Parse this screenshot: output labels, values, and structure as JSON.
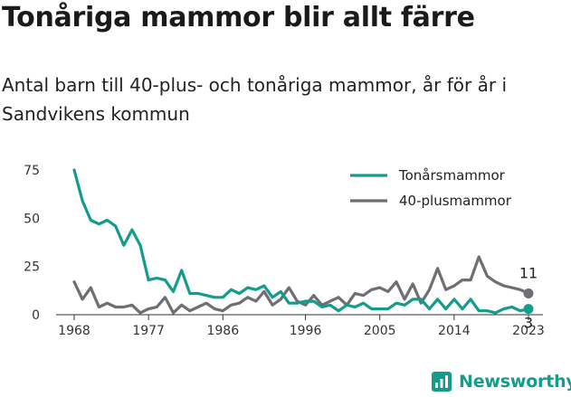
{
  "header": {
    "title": "Tonåriga mammor blir allt färre",
    "subtitle": "Antal barn till 40-plus- och tonåriga mammor, år för år i Sandvikens kommun"
  },
  "brand": {
    "name": "Newsworthy",
    "icon": "newsworthy-logo-icon",
    "color": "#139c8c"
  },
  "chart_data": {
    "type": "line",
    "title": "Tonåriga mammor blir allt färre",
    "subtitle": "Antal barn till 40-plus- och tonåriga mammor, år för år i Sandvikens kommun",
    "xlabel": "",
    "ylabel": "",
    "x": [
      1968,
      1969,
      1970,
      1971,
      1972,
      1973,
      1974,
      1975,
      1976,
      1977,
      1978,
      1979,
      1980,
      1981,
      1982,
      1983,
      1984,
      1985,
      1986,
      1987,
      1988,
      1989,
      1990,
      1991,
      1992,
      1993,
      1994,
      1995,
      1996,
      1997,
      1998,
      1999,
      2000,
      2001,
      2002,
      2003,
      2004,
      2005,
      2006,
      2007,
      2008,
      2009,
      2010,
      2011,
      2012,
      2013,
      2014,
      2015,
      2016,
      2017,
      2018,
      2019,
      2020,
      2021,
      2022,
      2023
    ],
    "xticks": [
      "1968",
      "1977",
      "1986",
      "1996",
      "2005",
      "2014",
      "2023"
    ],
    "xlim": [
      1968,
      2023
    ],
    "yticks": [
      "0",
      "25",
      "50",
      "75"
    ],
    "ylim": [
      0,
      75
    ],
    "grid": false,
    "legend_position": "top-right",
    "series": [
      {
        "name": "Tonårsmammor",
        "color": "#139c8c",
        "values": [
          75,
          59,
          49,
          47,
          49,
          46,
          36,
          44,
          36,
          18,
          19,
          18,
          12,
          23,
          11,
          11,
          10,
          9,
          9,
          13,
          11,
          14,
          13,
          15,
          9,
          12,
          6,
          6,
          7,
          7,
          4,
          5,
          2,
          5,
          4,
          6,
          3,
          3,
          3,
          6,
          5,
          8,
          8,
          3,
          8,
          3,
          8,
          3,
          8,
          2,
          2,
          1,
          3,
          4,
          2,
          3
        ],
        "end_label": "3"
      },
      {
        "name": "40-plusmammor",
        "color": "#6e6e73",
        "values": [
          17,
          8,
          14,
          4,
          6,
          4,
          4,
          5,
          1,
          3,
          4,
          9,
          1,
          5,
          2,
          4,
          6,
          3,
          2,
          5,
          6,
          9,
          7,
          12,
          5,
          8,
          14,
          7,
          5,
          10,
          5,
          7,
          9,
          5,
          11,
          10,
          13,
          14,
          12,
          17,
          8,
          16,
          6,
          13,
          24,
          13,
          15,
          18,
          18,
          30,
          20,
          17,
          15,
          14,
          13,
          11
        ],
        "end_label": "11"
      }
    ]
  }
}
